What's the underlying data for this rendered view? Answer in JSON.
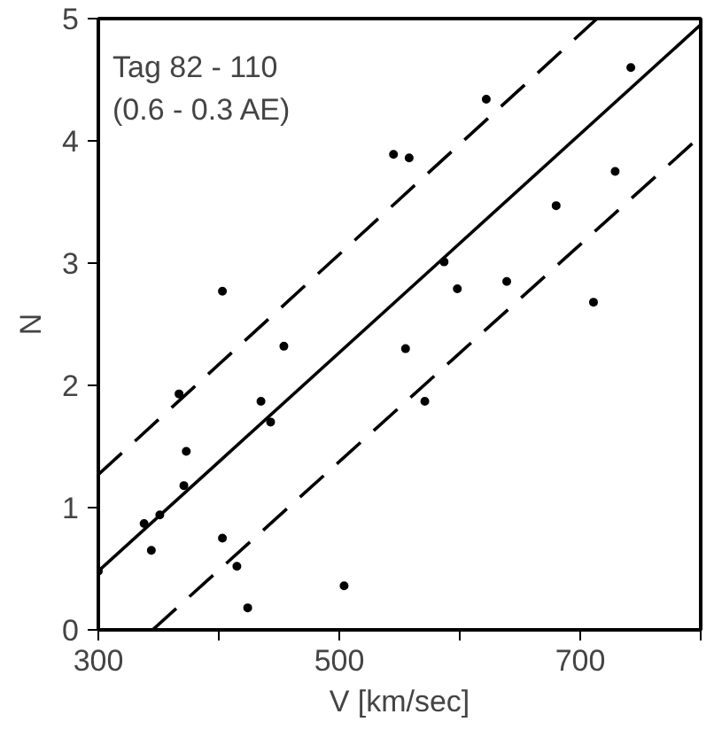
{
  "chart_data": {
    "type": "scatter",
    "xlabel": "V [km/sec]",
    "ylabel": "N",
    "annotations": [
      "Tag 82 - 110",
      "(0.6 - 0.3 AE)"
    ],
    "xlim": [
      300,
      800
    ],
    "ylim": [
      0,
      5
    ],
    "xticks": [
      300,
      {
        "value": 400,
        "label": null
      },
      500,
      {
        "value": 600,
        "label": null
      },
      700,
      {
        "value": 800,
        "label": null
      }
    ],
    "yticks": [
      0,
      1,
      2,
      3,
      4,
      5
    ],
    "grid": false,
    "marker": "circle",
    "series": [
      {
        "color": "#000000",
        "x": [
          300,
          338,
          344,
          351,
          367,
          371,
          373,
          403,
          403,
          415,
          424,
          435,
          443,
          454,
          504,
          545,
          555,
          558,
          571,
          587,
          598,
          622,
          639,
          680,
          711,
          729,
          742
        ],
        "values": [
          0.48,
          0.87,
          0.65,
          0.94,
          1.93,
          1.18,
          1.46,
          0.75,
          2.77,
          0.52,
          0.18,
          1.87,
          1.7,
          2.32,
          0.36,
          3.89,
          2.3,
          3.86,
          1.87,
          3.01,
          2.79,
          4.34,
          2.85,
          3.47,
          2.68,
          3.75,
          4.6
        ]
      },
      {
        "type": "line",
        "color": "#000000",
        "line_style": "solid",
        "marker": "none",
        "x": [
          300,
          800
        ],
        "values": [
          0.48,
          4.95
        ]
      },
      {
        "type": "line",
        "color": "#000000",
        "line_style": "dashed",
        "marker": "none",
        "x": [
          300,
          714
        ],
        "values": [
          1.27,
          5
        ]
      },
      {
        "type": "line",
        "color": "#000000",
        "line_style": "dashed",
        "marker": "none",
        "x": [
          345,
          800
        ],
        "values": [
          0,
          4.04
        ]
      }
    ]
  }
}
